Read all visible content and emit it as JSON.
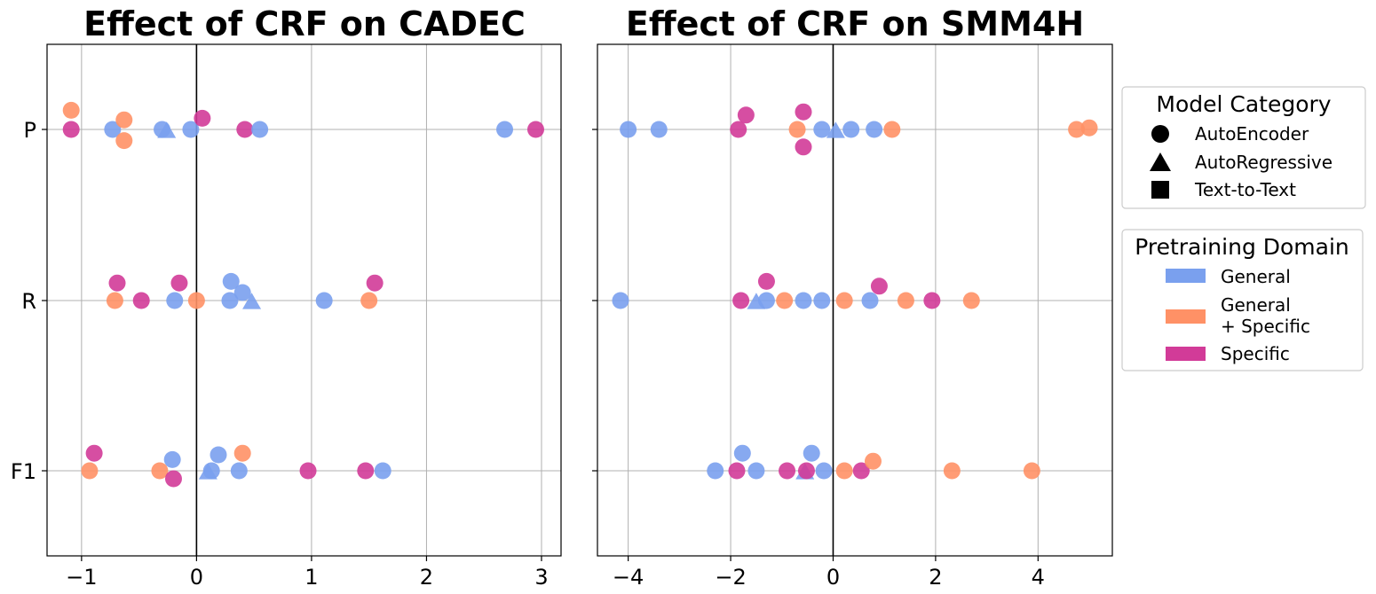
{
  "chart_data": [
    {
      "type": "scatter",
      "title": "Effect of CRF on CADEC",
      "xlim": [
        -1.3,
        3.17
      ],
      "xticks": [
        -1,
        0,
        1,
        2,
        3
      ],
      "xtick_labels": [
        "−1",
        "0",
        "1",
        "2",
        "3"
      ],
      "yticks": [
        "P",
        "R",
        "F1"
      ],
      "points": [
        {
          "metric": "P",
          "x": -1.09,
          "jitter": 0.12,
          "domain": "General + Specific",
          "model": "AutoEncoder"
        },
        {
          "metric": "P",
          "x": -1.09,
          "jitter": 0.0,
          "domain": "Specific",
          "model": "AutoEncoder"
        },
        {
          "metric": "P",
          "x": -0.73,
          "jitter": 0.0,
          "domain": "General",
          "model": "AutoEncoder"
        },
        {
          "metric": "P",
          "x": -0.63,
          "jitter": 0.06,
          "domain": "General + Specific",
          "model": "AutoEncoder"
        },
        {
          "metric": "P",
          "x": -0.63,
          "jitter": -0.07,
          "domain": "General + Specific",
          "model": "AutoEncoder"
        },
        {
          "metric": "P",
          "x": -0.3,
          "jitter": 0.0,
          "domain": "General",
          "model": "AutoEncoder"
        },
        {
          "metric": "P",
          "x": -0.26,
          "jitter": -0.01,
          "domain": "General",
          "model": "AutoRegressive"
        },
        {
          "metric": "P",
          "x": -0.05,
          "jitter": 0.0,
          "domain": "General",
          "model": "AutoEncoder"
        },
        {
          "metric": "P",
          "x": 0.05,
          "jitter": 0.07,
          "domain": "Specific",
          "model": "AutoEncoder"
        },
        {
          "metric": "P",
          "x": 0.42,
          "jitter": 0.0,
          "domain": "Specific",
          "model": "AutoEncoder"
        },
        {
          "metric": "P",
          "x": 0.55,
          "jitter": 0.0,
          "domain": "General",
          "model": "AutoEncoder"
        },
        {
          "metric": "P",
          "x": 2.68,
          "jitter": 0.0,
          "domain": "General",
          "model": "AutoEncoder"
        },
        {
          "metric": "P",
          "x": 2.95,
          "jitter": 0.0,
          "domain": "Specific",
          "model": "AutoEncoder"
        },
        {
          "metric": "R",
          "x": -0.71,
          "jitter": 0.0,
          "domain": "General + Specific",
          "model": "AutoEncoder"
        },
        {
          "metric": "R",
          "x": -0.69,
          "jitter": 0.11,
          "domain": "Specific",
          "model": "AutoEncoder"
        },
        {
          "metric": "R",
          "x": -0.48,
          "jitter": 0.0,
          "domain": "Specific",
          "model": "AutoEncoder"
        },
        {
          "metric": "R",
          "x": -0.19,
          "jitter": 0.0,
          "domain": "General",
          "model": "AutoEncoder"
        },
        {
          "metric": "R",
          "x": -0.15,
          "jitter": 0.11,
          "domain": "Specific",
          "model": "AutoEncoder"
        },
        {
          "metric": "R",
          "x": 0.0,
          "jitter": 0.0,
          "domain": "General + Specific",
          "model": "AutoEncoder"
        },
        {
          "metric": "R",
          "x": 0.29,
          "jitter": 0.0,
          "domain": "General",
          "model": "AutoEncoder"
        },
        {
          "metric": "R",
          "x": 0.3,
          "jitter": 0.12,
          "domain": "General",
          "model": "AutoEncoder"
        },
        {
          "metric": "R",
          "x": 0.4,
          "jitter": 0.05,
          "domain": "General",
          "model": "AutoEncoder"
        },
        {
          "metric": "R",
          "x": 0.48,
          "jitter": -0.01,
          "domain": "General",
          "model": "AutoRegressive"
        },
        {
          "metric": "R",
          "x": 1.11,
          "jitter": 0.0,
          "domain": "General",
          "model": "AutoEncoder"
        },
        {
          "metric": "R",
          "x": 1.5,
          "jitter": 0.0,
          "domain": "General + Specific",
          "model": "AutoEncoder"
        },
        {
          "metric": "R",
          "x": 1.55,
          "jitter": 0.11,
          "domain": "Specific",
          "model": "AutoEncoder"
        },
        {
          "metric": "F1",
          "x": -0.93,
          "jitter": 0.0,
          "domain": "General + Specific",
          "model": "AutoEncoder"
        },
        {
          "metric": "F1",
          "x": -0.89,
          "jitter": 0.11,
          "domain": "Specific",
          "model": "AutoEncoder"
        },
        {
          "metric": "F1",
          "x": -0.32,
          "jitter": 0.0,
          "domain": "General + Specific",
          "model": "AutoEncoder"
        },
        {
          "metric": "F1",
          "x": -0.21,
          "jitter": 0.07,
          "domain": "General",
          "model": "AutoEncoder"
        },
        {
          "metric": "F1",
          "x": -0.2,
          "jitter": -0.05,
          "domain": "Specific",
          "model": "AutoEncoder"
        },
        {
          "metric": "F1",
          "x": 0.1,
          "jitter": -0.01,
          "domain": "General",
          "model": "AutoRegressive"
        },
        {
          "metric": "F1",
          "x": 0.13,
          "jitter": 0.0,
          "domain": "General",
          "model": "AutoEncoder"
        },
        {
          "metric": "F1",
          "x": 0.19,
          "jitter": 0.1,
          "domain": "General",
          "model": "AutoEncoder"
        },
        {
          "metric": "F1",
          "x": 0.37,
          "jitter": 0.0,
          "domain": "General",
          "model": "AutoEncoder"
        },
        {
          "metric": "F1",
          "x": 0.4,
          "jitter": 0.11,
          "domain": "General + Specific",
          "model": "AutoEncoder"
        },
        {
          "metric": "F1",
          "x": 0.97,
          "jitter": 0.0,
          "domain": "Specific",
          "model": "AutoEncoder"
        },
        {
          "metric": "F1",
          "x": 1.47,
          "jitter": 0.0,
          "domain": "Specific",
          "model": "AutoEncoder"
        },
        {
          "metric": "F1",
          "x": 1.62,
          "jitter": 0.0,
          "domain": "General",
          "model": "AutoEncoder"
        }
      ]
    },
    {
      "type": "scatter",
      "title": "Effect of CRF on SMM4H",
      "xlim": [
        -4.6,
        5.45
      ],
      "xticks": [
        -4,
        -2,
        0,
        2,
        4
      ],
      "xtick_labels": [
        "−4",
        "−2",
        "0",
        "2",
        "4"
      ],
      "yticks": [
        "P",
        "R",
        "F1"
      ],
      "points": [
        {
          "metric": "P",
          "x": -4.0,
          "jitter": 0.0,
          "domain": "General",
          "model": "AutoEncoder"
        },
        {
          "metric": "P",
          "x": -3.4,
          "jitter": 0.0,
          "domain": "General",
          "model": "AutoEncoder"
        },
        {
          "metric": "P",
          "x": -1.85,
          "jitter": 0.0,
          "domain": "Specific",
          "model": "AutoEncoder"
        },
        {
          "metric": "P",
          "x": -1.7,
          "jitter": 0.09,
          "domain": "Specific",
          "model": "AutoEncoder"
        },
        {
          "metric": "P",
          "x": -0.7,
          "jitter": 0.0,
          "domain": "General + Specific",
          "model": "AutoEncoder"
        },
        {
          "metric": "P",
          "x": -0.58,
          "jitter": 0.11,
          "domain": "Specific",
          "model": "AutoEncoder"
        },
        {
          "metric": "P",
          "x": -0.58,
          "jitter": -0.11,
          "domain": "Specific",
          "model": "AutoEncoder"
        },
        {
          "metric": "P",
          "x": -0.22,
          "jitter": 0.0,
          "domain": "General",
          "model": "AutoEncoder"
        },
        {
          "metric": "P",
          "x": 0.05,
          "jitter": -0.01,
          "domain": "General",
          "model": "AutoRegressive"
        },
        {
          "metric": "P",
          "x": 0.35,
          "jitter": 0.0,
          "domain": "General",
          "model": "AutoEncoder"
        },
        {
          "metric": "P",
          "x": 0.8,
          "jitter": 0.0,
          "domain": "General",
          "model": "AutoEncoder"
        },
        {
          "metric": "P",
          "x": 1.15,
          "jitter": 0.0,
          "domain": "General + Specific",
          "model": "AutoEncoder"
        },
        {
          "metric": "P",
          "x": 4.75,
          "jitter": 0.0,
          "domain": "General + Specific",
          "model": "AutoEncoder"
        },
        {
          "metric": "P",
          "x": 5.0,
          "jitter": 0.01,
          "domain": "General + Specific",
          "model": "AutoEncoder"
        },
        {
          "metric": "R",
          "x": -4.15,
          "jitter": 0.0,
          "domain": "General",
          "model": "AutoEncoder"
        },
        {
          "metric": "R",
          "x": -1.8,
          "jitter": 0.0,
          "domain": "Specific",
          "model": "AutoEncoder"
        },
        {
          "metric": "R",
          "x": -1.5,
          "jitter": -0.01,
          "domain": "General",
          "model": "AutoRegressive"
        },
        {
          "metric": "R",
          "x": -1.3,
          "jitter": 0.0,
          "domain": "General",
          "model": "AutoEncoder"
        },
        {
          "metric": "R",
          "x": -1.3,
          "jitter": 0.12,
          "domain": "Specific",
          "model": "AutoEncoder"
        },
        {
          "metric": "R",
          "x": -0.95,
          "jitter": 0.0,
          "domain": "General + Specific",
          "model": "AutoEncoder"
        },
        {
          "metric": "R",
          "x": -0.58,
          "jitter": 0.0,
          "domain": "General",
          "model": "AutoEncoder"
        },
        {
          "metric": "R",
          "x": -0.22,
          "jitter": 0.0,
          "domain": "General",
          "model": "AutoEncoder"
        },
        {
          "metric": "R",
          "x": 0.22,
          "jitter": 0.0,
          "domain": "General + Specific",
          "model": "AutoEncoder"
        },
        {
          "metric": "R",
          "x": 0.72,
          "jitter": 0.0,
          "domain": "General",
          "model": "AutoEncoder"
        },
        {
          "metric": "R",
          "x": 0.9,
          "jitter": 0.09,
          "domain": "Specific",
          "model": "AutoEncoder"
        },
        {
          "metric": "R",
          "x": 1.42,
          "jitter": 0.0,
          "domain": "General + Specific",
          "model": "AutoEncoder"
        },
        {
          "metric": "R",
          "x": 1.93,
          "jitter": 0.0,
          "domain": "Specific",
          "model": "AutoEncoder"
        },
        {
          "metric": "R",
          "x": 2.7,
          "jitter": 0.0,
          "domain": "General + Specific",
          "model": "AutoEncoder"
        },
        {
          "metric": "F1",
          "x": -2.3,
          "jitter": 0.0,
          "domain": "General",
          "model": "AutoEncoder"
        },
        {
          "metric": "F1",
          "x": -1.77,
          "jitter": 0.11,
          "domain": "General",
          "model": "AutoEncoder"
        },
        {
          "metric": "F1",
          "x": -1.88,
          "jitter": 0.0,
          "domain": "Specific",
          "model": "AutoEncoder"
        },
        {
          "metric": "F1",
          "x": -1.5,
          "jitter": 0.0,
          "domain": "General",
          "model": "AutoEncoder"
        },
        {
          "metric": "F1",
          "x": -0.9,
          "jitter": 0.0,
          "domain": "Specific",
          "model": "AutoEncoder"
        },
        {
          "metric": "F1",
          "x": -0.55,
          "jitter": -0.01,
          "domain": "General",
          "model": "AutoRegressive"
        },
        {
          "metric": "F1",
          "x": -0.52,
          "jitter": 0.0,
          "domain": "Specific",
          "model": "AutoEncoder"
        },
        {
          "metric": "F1",
          "x": -0.42,
          "jitter": 0.11,
          "domain": "General",
          "model": "AutoEncoder"
        },
        {
          "metric": "F1",
          "x": -0.18,
          "jitter": 0.0,
          "domain": "General",
          "model": "AutoEncoder"
        },
        {
          "metric": "F1",
          "x": 0.22,
          "jitter": 0.0,
          "domain": "General + Specific",
          "model": "AutoEncoder"
        },
        {
          "metric": "F1",
          "x": 0.55,
          "jitter": 0.0,
          "domain": "Specific",
          "model": "AutoEncoder"
        },
        {
          "metric": "F1",
          "x": 0.78,
          "jitter": 0.06,
          "domain": "General + Specific",
          "model": "AutoEncoder"
        },
        {
          "metric": "F1",
          "x": 2.32,
          "jitter": 0.0,
          "domain": "General + Specific",
          "model": "AutoEncoder"
        },
        {
          "metric": "F1",
          "x": 3.88,
          "jitter": 0.0,
          "domain": "General + Specific",
          "model": "AutoEncoder"
        }
      ]
    }
  ],
  "legends": {
    "model_category": {
      "title": "Model Category",
      "items": [
        {
          "label": "AutoEncoder",
          "marker": "circle"
        },
        {
          "label": "AutoRegressive",
          "marker": "triangle"
        },
        {
          "label": "Text-to-Text",
          "marker": "square"
        }
      ]
    },
    "pretraining_domain": {
      "title": "Pretraining Domain",
      "items": [
        {
          "label": "General",
          "color": "#7aa0ee"
        },
        {
          "label_line1": "General",
          "label_line2": "+ Specific",
          "color": "#ff9166"
        },
        {
          "label": "Specific",
          "color": "#d23b98"
        }
      ]
    }
  },
  "colors": {
    "General": "#7aa0ee",
    "General + Specific": "#ff9166",
    "Specific": "#d23b98",
    "grid": "#b0b0b0",
    "axis": "#000000"
  }
}
